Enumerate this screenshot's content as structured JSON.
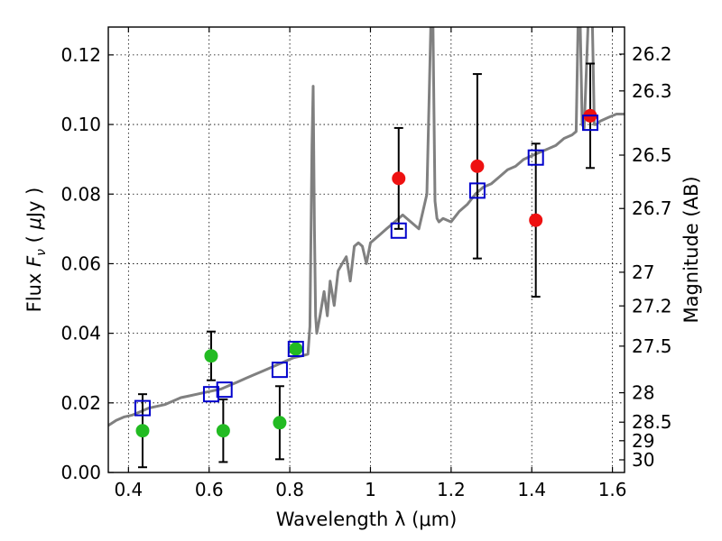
{
  "chart_data": {
    "type": "scatter",
    "xlabel": "Wavelength  λ (μm)",
    "ylabel_parts": [
      "Flux  ",
      "F",
      "ν",
      "  (  ",
      "μ",
      "Jy  )"
    ],
    "y2label": "Magnitude (AB)",
    "xlim": [
      0.35,
      1.63
    ],
    "ylim": [
      0.0,
      0.128
    ],
    "x_ticks": [
      0.4,
      0.6,
      0.8,
      1.0,
      1.2,
      1.4,
      1.6
    ],
    "x_tick_labels": [
      "0.4",
      "0.6",
      "0.8",
      "1",
      "1.2",
      "1.4",
      "1.6"
    ],
    "y_ticks": [
      0.0,
      0.02,
      0.04,
      0.06,
      0.08,
      0.1,
      0.12
    ],
    "y_tick_labels": [
      "0.00",
      "0.02",
      "0.04",
      "0.06",
      "0.08",
      "0.10",
      "0.12"
    ],
    "y2_ticks": [
      26.2,
      26.3,
      26.5,
      26.7,
      27,
      27.2,
      27.5,
      28,
      28.5,
      29,
      30
    ],
    "y2_tick_labels": [
      "26.2",
      "26.3",
      "26.5",
      "26.7",
      "27",
      "27.2",
      "27.5",
      "28",
      "28.5",
      "29",
      "30"
    ],
    "grid": true,
    "colors": {
      "spectrum": "#808080",
      "model": "#0000cc",
      "optical": "#22bb22",
      "nir": "#ee1111",
      "errorbar": "#000000"
    },
    "spectrum": {
      "x": [
        0.35,
        0.37,
        0.39,
        0.41,
        0.43,
        0.45,
        0.47,
        0.49,
        0.51,
        0.53,
        0.55,
        0.57,
        0.59,
        0.61,
        0.63,
        0.65,
        0.67,
        0.69,
        0.71,
        0.73,
        0.75,
        0.77,
        0.79,
        0.81,
        0.83,
        0.845,
        0.85,
        0.855,
        0.858,
        0.861,
        0.864,
        0.867,
        0.875,
        0.885,
        0.893,
        0.9,
        0.91,
        0.92,
        0.93,
        0.94,
        0.95,
        0.96,
        0.97,
        0.98,
        0.99,
        1.0,
        1.02,
        1.04,
        1.06,
        1.08,
        1.1,
        1.12,
        1.13,
        1.14,
        1.15,
        1.155,
        1.16,
        1.165,
        1.17,
        1.18,
        1.2,
        1.22,
        1.24,
        1.26,
        1.28,
        1.3,
        1.32,
        1.34,
        1.36,
        1.38,
        1.4,
        1.42,
        1.44,
        1.46,
        1.48,
        1.5,
        1.51,
        1.515,
        1.52,
        1.525,
        1.53,
        1.54,
        1.545,
        1.55,
        1.555,
        1.56,
        1.57,
        1.59,
        1.61,
        1.63
      ],
      "y": [
        0.0135,
        0.015,
        0.016,
        0.0165,
        0.0175,
        0.0185,
        0.019,
        0.0195,
        0.0205,
        0.0215,
        0.022,
        0.0225,
        0.023,
        0.0235,
        0.024,
        0.025,
        0.026,
        0.027,
        0.028,
        0.029,
        0.03,
        0.031,
        0.032,
        0.033,
        0.0335,
        0.034,
        0.042,
        0.094,
        0.111,
        0.07,
        0.045,
        0.04,
        0.045,
        0.052,
        0.045,
        0.055,
        0.048,
        0.058,
        0.06,
        0.062,
        0.055,
        0.065,
        0.066,
        0.065,
        0.06,
        0.066,
        0.068,
        0.07,
        0.072,
        0.074,
        0.072,
        0.07,
        0.075,
        0.08,
        0.13,
        0.13,
        0.078,
        0.073,
        0.072,
        0.073,
        0.072,
        0.075,
        0.077,
        0.08,
        0.082,
        0.083,
        0.085,
        0.087,
        0.088,
        0.09,
        0.091,
        0.092,
        0.093,
        0.094,
        0.096,
        0.097,
        0.098,
        0.13,
        0.13,
        0.1,
        0.099,
        0.13,
        0.13,
        0.13,
        0.1,
        0.1,
        0.101,
        0.102,
        0.103,
        0.103
      ]
    },
    "model_points": [
      {
        "x": 0.435,
        "y": 0.0185
      },
      {
        "x": 0.605,
        "y": 0.0225
      },
      {
        "x": 0.638,
        "y": 0.0238
      },
      {
        "x": 0.775,
        "y": 0.0295
      },
      {
        "x": 0.815,
        "y": 0.0355
      },
      {
        "x": 1.07,
        "y": 0.0695
      },
      {
        "x": 1.265,
        "y": 0.081
      },
      {
        "x": 1.41,
        "y": 0.0905
      },
      {
        "x": 1.545,
        "y": 0.1005
      }
    ],
    "optical_points": [
      {
        "x": 0.435,
        "y": 0.012,
        "err": 0.0105
      },
      {
        "x": 0.605,
        "y": 0.0335,
        "err": 0.007
      },
      {
        "x": 0.635,
        "y": 0.012,
        "err": 0.009
      },
      {
        "x": 0.775,
        "y": 0.0143,
        "err": 0.0105
      },
      {
        "x": 0.815,
        "y": 0.0355,
        "err": 0.0
      }
    ],
    "nir_points": [
      {
        "x": 1.07,
        "y": 0.0845,
        "err": 0.0145
      },
      {
        "x": 1.265,
        "y": 0.088,
        "err": 0.0265
      },
      {
        "x": 1.41,
        "y": 0.0725,
        "err": 0.022
      },
      {
        "x": 1.545,
        "y": 0.1025,
        "err": 0.015
      }
    ]
  }
}
